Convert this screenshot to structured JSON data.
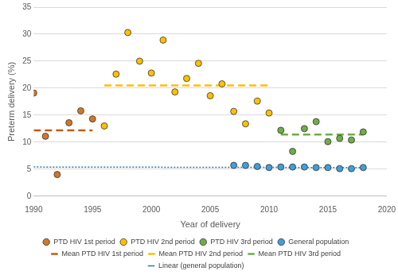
{
  "chart_data": {
    "type": "scatter",
    "x_label": "Year of delivery",
    "y_label": "Preterm delivery (%)",
    "xlim": [
      1990,
      2020
    ],
    "xticks": [
      1990,
      1995,
      2000,
      2005,
      2010,
      2015,
      2020
    ],
    "ylim": [
      0,
      35
    ],
    "yticks": [
      0,
      5,
      10,
      15,
      20,
      25,
      30,
      35
    ],
    "grid": "y",
    "legend": "bottom",
    "series": [
      {
        "name": "PTD HIV 1st period",
        "type": "scatter",
        "marker": "circle",
        "color": "#d0782a",
        "x": [
          1990,
          1991,
          1992,
          1993,
          1994,
          1995
        ],
        "values": [
          19.1,
          11.1,
          4.0,
          13.6,
          15.8,
          14.3
        ]
      },
      {
        "name": "PTD HIV 2nd period",
        "type": "scatter",
        "marker": "circle",
        "color": "#ffc000",
        "x": [
          1996,
          1997,
          1998,
          1999,
          2000,
          2001,
          2002,
          2003,
          2004,
          2005,
          2006,
          2007,
          2008,
          2009,
          2010
        ],
        "values": [
          13.0,
          22.6,
          30.3,
          25.0,
          22.8,
          28.9,
          19.3,
          21.8,
          24.6,
          18.6,
          20.8,
          15.7,
          13.4,
          17.6,
          15.4
        ]
      },
      {
        "name": "PTD HIV 3rd period",
        "type": "scatter",
        "marker": "circle",
        "color": "#70ad47",
        "x": [
          2011,
          2012,
          2013,
          2014,
          2015,
          2016,
          2017,
          2018
        ],
        "values": [
          12.2,
          8.3,
          12.5,
          13.8,
          10.1,
          10.7,
          10.4,
          11.9
        ]
      },
      {
        "name": "General population",
        "type": "scatter",
        "marker": "circle",
        "color": "#3f9fd8",
        "x": [
          2007,
          2008,
          2009,
          2010,
          2011,
          2012,
          2013,
          2014,
          2015,
          2016,
          2017,
          2018
        ],
        "values": [
          5.7,
          5.7,
          5.5,
          5.3,
          5.4,
          5.4,
          5.4,
          5.3,
          5.3,
          5.1,
          5.1,
          5.3
        ]
      },
      {
        "name": "Mean PTD HIV 1st period",
        "type": "line",
        "line_style": "dashed",
        "color": "#c55a11",
        "x": [
          1990,
          1995
        ],
        "values": [
          12.2,
          12.2
        ]
      },
      {
        "name": "Mean PTD HIV 2nd period",
        "type": "line",
        "line_style": "dashed",
        "color": "#ffc000",
        "x": [
          1996,
          2010
        ],
        "values": [
          20.5,
          20.5
        ]
      },
      {
        "name": "Mean PTD HIV 3rd period",
        "type": "line",
        "line_style": "dashed",
        "color": "#70ad47",
        "x": [
          2011,
          2018
        ],
        "values": [
          11.4,
          11.4
        ]
      },
      {
        "name": "Linear (general population)",
        "type": "line",
        "line_style": "dotted",
        "color": "#2e75b6",
        "x": [
          1990,
          2018
        ],
        "values": [
          5.4,
          5.3
        ]
      }
    ]
  }
}
